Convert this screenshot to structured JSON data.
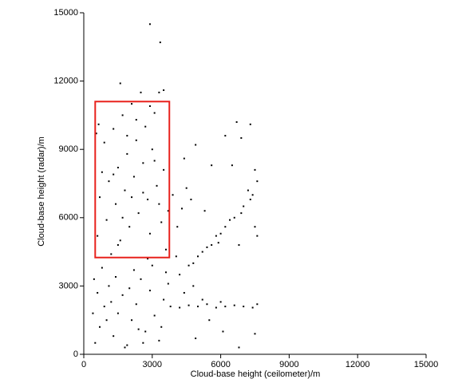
{
  "chart_data": {
    "type": "scatter",
    "xlabel": "Cloud-base height (ceilometer)/m",
    "ylabel": "Cloud-base height (radar)/m",
    "xlim": [
      0,
      15000
    ],
    "ylim": [
      0,
      15000
    ],
    "xticks": [
      0,
      3000,
      6000,
      9000,
      12000,
      15000
    ],
    "yticks": [
      0,
      3000,
      6000,
      9000,
      12000,
      15000
    ],
    "grid": false,
    "series": [
      {
        "color": "#000000",
        "x": [
          500,
          700,
          900,
          1100,
          1300,
          1500,
          1700,
          1900,
          2100,
          2300,
          2500,
          2700,
          2900,
          3100,
          3300,
          3500,
          3700,
          800,
          1200,
          1600,
          2000,
          2400,
          2800,
          3200,
          3600,
          600,
          1000,
          1400,
          1800,
          2200,
          2600,
          3000,
          3400,
          700,
          1100,
          1500,
          1900,
          2300,
          2700,
          3100,
          900,
          1300,
          1700,
          2100,
          2500,
          1600,
          3300,
          3500,
          3700,
          550,
          650,
          3900,
          4100,
          4300,
          2200,
          1400,
          600,
          1000,
          1800,
          2600,
          3000,
          3400,
          1200,
          2000,
          2800,
          3600,
          400,
          450,
          2400,
          1500,
          2900,
          1700,
          3300,
          2100,
          1300,
          2600,
          800,
          3100,
          1900,
          2900,
          2300,
          3800,
          4200,
          4600,
          5000,
          5400,
          5800,
          6200,
          6600,
          7000,
          7400,
          4400,
          5200,
          6000,
          4800,
          7600,
          4200,
          4600,
          5000,
          5400,
          5800,
          6200,
          6600,
          7000,
          7400,
          7600,
          7300,
          6900,
          6400,
          6000,
          5600,
          5200,
          4800,
          7500,
          7200,
          4500,
          4900,
          5600,
          6200,
          6700,
          6900,
          7300,
          6500,
          5300,
          4400,
          5900,
          7500,
          6800,
          7600,
          4700,
          6100,
          7500,
          6800,
          5500,
          4900,
          2900,
          3350,
          3500,
          4050
        ],
        "y": [
          500,
          1200,
          2100,
          3000,
          800,
          1800,
          2600,
          400,
          1500,
          2200,
          3300,
          1000,
          2800,
          1700,
          600,
          2400,
          3100,
          3800,
          4400,
          5000,
          5600,
          6200,
          6800,
          7400,
          4600,
          5200,
          5900,
          6600,
          7200,
          7800,
          8400,
          9000,
          5800,
          6900,
          7600,
          8200,
          8800,
          9400,
          10000,
          10600,
          9300,
          9900,
          10500,
          11000,
          11500,
          11900,
          11500,
          8100,
          6300,
          9700,
          10100,
          7000,
          5600,
          6400,
          3700,
          3400,
          2700,
          1500,
          300,
          500,
          3900,
          1200,
          2300,
          2900,
          4200,
          3600,
          1800,
          3300,
          1100,
          4800,
          5300,
          6000,
          6600,
          6900,
          7900,
          7100,
          8000,
          8500,
          9600,
          10900,
          10300,
          2100,
          2050,
          2150,
          2100,
          2200,
          2050,
          2100,
          2150,
          2100,
          2050,
          2700,
          2400,
          2300,
          3000,
          2200,
          3500,
          3900,
          4300,
          4700,
          5200,
          5600,
          6000,
          6500,
          7000,
          7600,
          6800,
          6200,
          5900,
          5300,
          4800,
          4500,
          4000,
          8100,
          7200,
          7300,
          9200,
          8300,
          9600,
          10200,
          9500,
          10100,
          8300,
          6300,
          8600,
          4900,
          5600,
          4800,
          5200,
          6800,
          1000,
          900,
          300,
          1500,
          700,
          14500,
          13700,
          11600,
          4300
        ]
      }
    ],
    "annotation_box": {
      "x": [
        500,
        3750
      ],
      "y": [
        4250,
        11100
      ],
      "color": "#e8211c"
    }
  }
}
